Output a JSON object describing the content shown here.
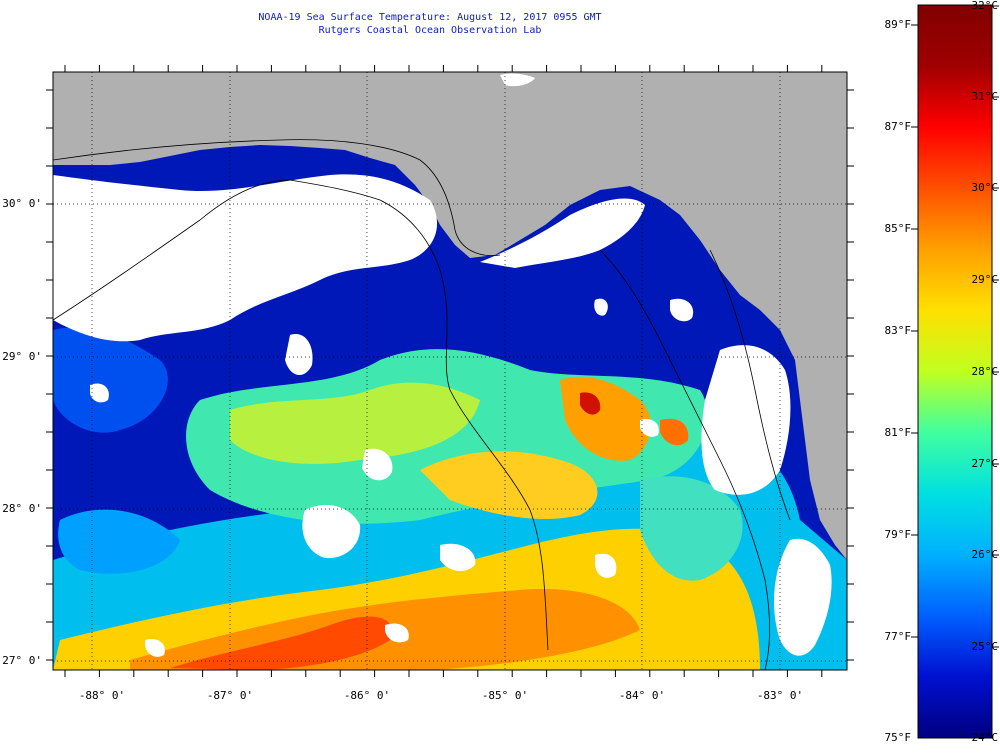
{
  "title": {
    "line1": "NOAA-19 Sea Surface Temperature:  August 12, 2017 0955 GMT",
    "line2": "Rutgers Coastal Ocean Observation Lab"
  },
  "map": {
    "lat_labels": [
      "30° 0'",
      "29° 0'",
      "28° 0'",
      "27° 0'"
    ],
    "lon_labels": [
      "-88° 0'",
      "-87° 0'",
      "-86° 0'",
      "-85° 0'",
      "-84° 0'",
      "-83° 0'"
    ],
    "colors": {
      "land": "#b0b0b0",
      "cloud": "#ffffff",
      "frame": "#000000"
    }
  },
  "colorbar": {
    "fahrenheit_labels": [
      "89°F",
      "87°F",
      "85°F",
      "83°F",
      "81°F",
      "79°F",
      "77°F",
      "75°F"
    ],
    "celsius_labels": [
      "32°C",
      "31°C",
      "30°C",
      "29°C",
      "28°C",
      "27°C",
      "26°C",
      "25°C",
      "24°C"
    ],
    "colors": [
      "#000080",
      "#0010d0",
      "#0060ff",
      "#00b0ff",
      "#00e0e0",
      "#40ffa0",
      "#c0ff20",
      "#ffe000",
      "#ffa000",
      "#ff5000",
      "#ff0000",
      "#a00000",
      "#800000"
    ]
  }
}
